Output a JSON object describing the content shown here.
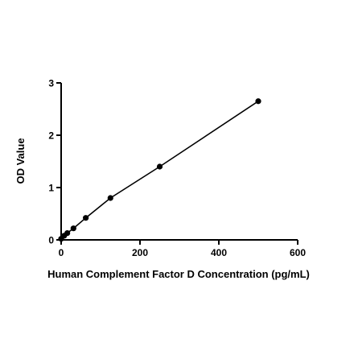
{
  "chart_data": {
    "type": "scatter",
    "title": "",
    "xlabel": "Human Complement Factor D Concentration (pg/mL)",
    "ylabel": "OD Value",
    "xlim": [
      0,
      600
    ],
    "ylim": [
      0,
      3
    ],
    "x_ticks": [
      0,
      200,
      400,
      600
    ],
    "y_ticks": [
      0,
      1,
      2,
      3
    ],
    "grid": false,
    "legend": "none",
    "fit_line": true,
    "colors": {
      "points": "#000000",
      "line": "#000000",
      "axes": "#000000"
    },
    "series": [
      {
        "x": [
          0,
          7.8,
          15.6,
          31.25,
          62.5,
          125,
          250,
          500
        ],
        "y": [
          0.02,
          0.08,
          0.13,
          0.22,
          0.42,
          0.8,
          1.4,
          2.65
        ]
      }
    ]
  }
}
